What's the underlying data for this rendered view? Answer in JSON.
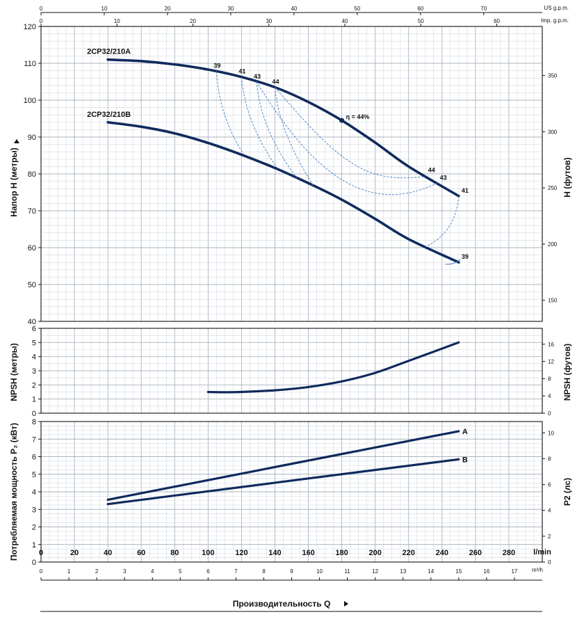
{
  "chart_data": {
    "type": "line",
    "top_scales": {
      "us": {
        "unit": "US g.p.m.",
        "ticks": [
          0,
          10,
          20,
          30,
          40,
          50,
          60,
          70
        ]
      },
      "imp": {
        "unit": "Imp. g.p.m.",
        "ticks": [
          0,
          10,
          20,
          30,
          40,
          50,
          60
        ]
      }
    },
    "bottom_scales": {
      "lmin": {
        "unit": "l/min",
        "ticks": [
          0,
          20,
          40,
          60,
          80,
          100,
          120,
          140,
          160,
          180,
          200,
          220,
          240,
          260,
          280
        ]
      },
      "m3h": {
        "unit": "m³/h",
        "ticks": [
          0,
          1,
          2,
          3,
          4,
          5,
          6,
          7,
          8,
          9,
          10,
          11,
          12,
          13,
          14,
          15,
          16,
          17
        ]
      }
    },
    "xlabel": "Производительность Q",
    "xlim": [
      0,
      300
    ],
    "head": {
      "ylabel_left": "Напор H (метры)",
      "ylabel_right": "H (футов)",
      "ylim": [
        40,
        120
      ],
      "ticks_left": [
        40,
        50,
        60,
        70,
        80,
        90,
        100,
        110,
        120
      ],
      "ticks_right": [
        150,
        200,
        250,
        300,
        350
      ],
      "series": [
        {
          "name": "2CP32/210A",
          "x": [
            40,
            60,
            80,
            100,
            120,
            140,
            160,
            180,
            200,
            220,
            250
          ],
          "y": [
            111,
            110.6,
            109.7,
            108.3,
            106.3,
            103.5,
            99.5,
            94.5,
            88.5,
            82,
            74
          ]
        },
        {
          "name": "2CP32/210B",
          "x": [
            40,
            60,
            80,
            100,
            120,
            140,
            160,
            180,
            200,
            220,
            250
          ],
          "y": [
            94,
            92.8,
            91,
            88.4,
            85.2,
            81.6,
            77.5,
            73,
            67.8,
            62.3,
            56
          ]
        }
      ],
      "efficiency_labels": [
        {
          "text": "39",
          "x": 105,
          "y": 107.8
        },
        {
          "text": "41",
          "x": 120,
          "y": 106.3
        },
        {
          "text": "43",
          "x": 129,
          "y": 104.9
        },
        {
          "text": "44",
          "x": 140,
          "y": 103.5
        },
        {
          "text": "η = 44%",
          "x": 180,
          "y": 94.5
        },
        {
          "text": "44",
          "x": 230,
          "y": 79.5
        },
        {
          "text": "43",
          "x": 237,
          "y": 77.5
        },
        {
          "text": "41",
          "x": 250,
          "y": 74
        },
        {
          "text": "39",
          "x": 250,
          "y": 56
        }
      ]
    },
    "npsh": {
      "ylabel_left": "NPSH (метры)",
      "ylabel_right": "NPSH (футов)",
      "ylim": [
        0,
        6
      ],
      "ticks_left": [
        0,
        1,
        2,
        3,
        4,
        5,
        6
      ],
      "ticks_right": [
        0,
        4,
        8,
        12,
        16
      ],
      "series": [
        {
          "x": [
            100,
            110,
            120,
            140,
            160,
            180,
            200,
            220,
            250
          ],
          "y": [
            1.5,
            1.48,
            1.5,
            1.62,
            1.85,
            2.25,
            2.85,
            3.7,
            5
          ]
        }
      ]
    },
    "power": {
      "ylabel_left": "Потребляемая мощность P₂ (кВт)",
      "ylabel_right": "P2 (лс)",
      "ylim": [
        0,
        8
      ],
      "ticks_left": [
        0,
        1,
        2,
        3,
        4,
        5,
        6,
        7,
        8
      ],
      "ticks_right": [
        0,
        2,
        4,
        6,
        8,
        10
      ],
      "series": [
        {
          "name": "A",
          "x": [
            40,
            250
          ],
          "y": [
            3.55,
            7.45
          ]
        },
        {
          "name": "B",
          "x": [
            40,
            250
          ],
          "y": [
            3.3,
            5.85
          ]
        }
      ]
    }
  }
}
